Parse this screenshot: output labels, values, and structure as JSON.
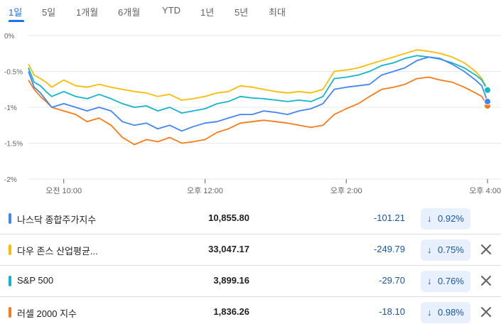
{
  "range_tabs": [
    "1일",
    "5일",
    "1개월",
    "6개월",
    "YTD",
    "1년",
    "5년",
    "최대"
  ],
  "active_tab": "1일",
  "chart_data": {
    "type": "line",
    "y_ticks": [
      "0%",
      "-0.5%",
      "-1%",
      "-1.5%",
      "-2%"
    ],
    "ylim": [
      -2,
      0
    ],
    "x_ticks": [
      "오전 10:00",
      "오후 12:00",
      "오후 2:00",
      "오후 4:00"
    ],
    "x_tick_hours": [
      10,
      12,
      14,
      16
    ],
    "xlim_hours": [
      9.5,
      16
    ],
    "grid": true,
    "series": [
      {
        "name": "나스닥 종합주가지수",
        "color": "#4285f4",
        "points": [
          [
            9.5,
            -0.5
          ],
          [
            9.58,
            -0.72
          ],
          [
            9.67,
            -0.8
          ],
          [
            9.75,
            -0.9
          ],
          [
            9.83,
            -1.0
          ],
          [
            10.0,
            -0.95
          ],
          [
            10.17,
            -1.0
          ],
          [
            10.33,
            -1.05
          ],
          [
            10.5,
            -1.0
          ],
          [
            10.67,
            -1.05
          ],
          [
            10.83,
            -1.2
          ],
          [
            11.0,
            -1.25
          ],
          [
            11.17,
            -1.22
          ],
          [
            11.33,
            -1.3
          ],
          [
            11.5,
            -1.25
          ],
          [
            11.67,
            -1.33
          ],
          [
            11.83,
            -1.27
          ],
          [
            12.0,
            -1.22
          ],
          [
            12.17,
            -1.2
          ],
          [
            12.33,
            -1.15
          ],
          [
            12.5,
            -1.1
          ],
          [
            12.67,
            -1.1
          ],
          [
            12.83,
            -1.05
          ],
          [
            13.0,
            -1.07
          ],
          [
            13.17,
            -1.1
          ],
          [
            13.33,
            -1.05
          ],
          [
            13.5,
            -1.02
          ],
          [
            13.67,
            -0.95
          ],
          [
            13.83,
            -0.75
          ],
          [
            14.0,
            -0.72
          ],
          [
            14.17,
            -0.7
          ],
          [
            14.33,
            -0.68
          ],
          [
            14.5,
            -0.55
          ],
          [
            14.67,
            -0.5
          ],
          [
            14.83,
            -0.45
          ],
          [
            15.0,
            -0.35
          ],
          [
            15.17,
            -0.3
          ],
          [
            15.33,
            -0.32
          ],
          [
            15.5,
            -0.4
          ],
          [
            15.67,
            -0.5
          ],
          [
            15.83,
            -0.62
          ],
          [
            15.92,
            -0.7
          ],
          [
            16.0,
            -0.92
          ]
        ]
      },
      {
        "name": "다우 존스 산업평균...",
        "color": "#fbbc04",
        "points": [
          [
            9.5,
            -0.4
          ],
          [
            9.58,
            -0.55
          ],
          [
            9.67,
            -0.6
          ],
          [
            9.75,
            -0.65
          ],
          [
            9.83,
            -0.72
          ],
          [
            10.0,
            -0.62
          ],
          [
            10.17,
            -0.7
          ],
          [
            10.33,
            -0.72
          ],
          [
            10.5,
            -0.68
          ],
          [
            10.67,
            -0.72
          ],
          [
            10.83,
            -0.75
          ],
          [
            11.0,
            -0.78
          ],
          [
            11.17,
            -0.8
          ],
          [
            11.33,
            -0.85
          ],
          [
            11.5,
            -0.82
          ],
          [
            11.67,
            -0.9
          ],
          [
            11.83,
            -0.88
          ],
          [
            12.0,
            -0.85
          ],
          [
            12.17,
            -0.8
          ],
          [
            12.33,
            -0.78
          ],
          [
            12.5,
            -0.7
          ],
          [
            12.67,
            -0.72
          ],
          [
            12.83,
            -0.75
          ],
          [
            13.0,
            -0.78
          ],
          [
            13.17,
            -0.8
          ],
          [
            13.33,
            -0.78
          ],
          [
            13.5,
            -0.8
          ],
          [
            13.67,
            -0.75
          ],
          [
            13.83,
            -0.5
          ],
          [
            14.0,
            -0.48
          ],
          [
            14.17,
            -0.45
          ],
          [
            14.33,
            -0.4
          ],
          [
            14.5,
            -0.35
          ],
          [
            14.67,
            -0.3
          ],
          [
            14.83,
            -0.25
          ],
          [
            15.0,
            -0.2
          ],
          [
            15.17,
            -0.22
          ],
          [
            15.33,
            -0.25
          ],
          [
            15.5,
            -0.3
          ],
          [
            15.67,
            -0.38
          ],
          [
            15.83,
            -0.5
          ],
          [
            15.92,
            -0.6
          ],
          [
            16.0,
            -0.75
          ]
        ]
      },
      {
        "name": "S&P 500",
        "color": "#12b5cb",
        "points": [
          [
            9.5,
            -0.45
          ],
          [
            9.58,
            -0.65
          ],
          [
            9.67,
            -0.7
          ],
          [
            9.75,
            -0.78
          ],
          [
            9.83,
            -0.85
          ],
          [
            10.0,
            -0.78
          ],
          [
            10.17,
            -0.85
          ],
          [
            10.33,
            -0.88
          ],
          [
            10.5,
            -0.82
          ],
          [
            10.67,
            -0.88
          ],
          [
            10.83,
            -0.95
          ],
          [
            11.0,
            -1.0
          ],
          [
            11.17,
            -0.98
          ],
          [
            11.33,
            -1.05
          ],
          [
            11.5,
            -1.0
          ],
          [
            11.67,
            -1.08
          ],
          [
            11.83,
            -1.05
          ],
          [
            12.0,
            -1.02
          ],
          [
            12.17,
            -0.95
          ],
          [
            12.33,
            -0.92
          ],
          [
            12.5,
            -0.85
          ],
          [
            12.67,
            -0.87
          ],
          [
            12.83,
            -0.88
          ],
          [
            13.0,
            -0.9
          ],
          [
            13.17,
            -0.92
          ],
          [
            13.33,
            -0.9
          ],
          [
            13.5,
            -0.92
          ],
          [
            13.67,
            -0.85
          ],
          [
            13.83,
            -0.6
          ],
          [
            14.0,
            -0.58
          ],
          [
            14.17,
            -0.55
          ],
          [
            14.33,
            -0.5
          ],
          [
            14.5,
            -0.42
          ],
          [
            14.67,
            -0.38
          ],
          [
            14.83,
            -0.32
          ],
          [
            15.0,
            -0.28
          ],
          [
            15.17,
            -0.3
          ],
          [
            15.33,
            -0.33
          ],
          [
            15.5,
            -0.38
          ],
          [
            15.67,
            -0.45
          ],
          [
            15.83,
            -0.55
          ],
          [
            15.92,
            -0.62
          ],
          [
            16.0,
            -0.76
          ]
        ]
      },
      {
        "name": "러셀 2000 지수",
        "color": "#fa7b17",
        "points": [
          [
            9.5,
            -0.62
          ],
          [
            9.58,
            -0.75
          ],
          [
            9.67,
            -0.85
          ],
          [
            9.75,
            -0.92
          ],
          [
            9.83,
            -1.0
          ],
          [
            10.0,
            -1.05
          ],
          [
            10.17,
            -1.1
          ],
          [
            10.33,
            -1.2
          ],
          [
            10.5,
            -1.15
          ],
          [
            10.67,
            -1.25
          ],
          [
            10.83,
            -1.42
          ],
          [
            11.0,
            -1.52
          ],
          [
            11.17,
            -1.45
          ],
          [
            11.33,
            -1.48
          ],
          [
            11.5,
            -1.42
          ],
          [
            11.67,
            -1.5
          ],
          [
            11.83,
            -1.48
          ],
          [
            12.0,
            -1.45
          ],
          [
            12.17,
            -1.35
          ],
          [
            12.33,
            -1.3
          ],
          [
            12.5,
            -1.22
          ],
          [
            12.67,
            -1.2
          ],
          [
            12.83,
            -1.18
          ],
          [
            13.0,
            -1.2
          ],
          [
            13.17,
            -1.22
          ],
          [
            13.33,
            -1.25
          ],
          [
            13.5,
            -1.28
          ],
          [
            13.67,
            -1.25
          ],
          [
            13.83,
            -1.1
          ],
          [
            14.0,
            -1.02
          ],
          [
            14.17,
            -0.95
          ],
          [
            14.33,
            -0.85
          ],
          [
            14.5,
            -0.75
          ],
          [
            14.67,
            -0.72
          ],
          [
            14.83,
            -0.68
          ],
          [
            15.0,
            -0.6
          ],
          [
            15.17,
            -0.58
          ],
          [
            15.33,
            -0.62
          ],
          [
            15.5,
            -0.65
          ],
          [
            15.67,
            -0.72
          ],
          [
            15.83,
            -0.8
          ],
          [
            15.92,
            -0.85
          ],
          [
            16.0,
            -0.98
          ]
        ]
      }
    ]
  },
  "rows": [
    {
      "name": "나스닥 종합주가지수",
      "price": "10,855.80",
      "change": "-101.21",
      "arrow": "↓",
      "pct": "0.92%",
      "color": "#4285f4"
    },
    {
      "name": "다우 존스 산업평균...",
      "price": "33,047.17",
      "change": "-249.79",
      "arrow": "↓",
      "pct": "0.75%",
      "color": "#fbbc04"
    },
    {
      "name": "S&P 500",
      "price": "3,899.16",
      "change": "-29.70",
      "arrow": "↓",
      "pct": "0.76%",
      "color": "#12b5cb"
    },
    {
      "name": "러셀 2000 지수",
      "price": "1,836.26",
      "change": "-18.10",
      "arrow": "↓",
      "pct": "0.98%",
      "color": "#fa7b17"
    }
  ],
  "remove_icon": "close-icon",
  "colors": {
    "accent": "#1a73e8",
    "negative": "#1a55a5",
    "pill_bg": "#e8f0fe"
  }
}
